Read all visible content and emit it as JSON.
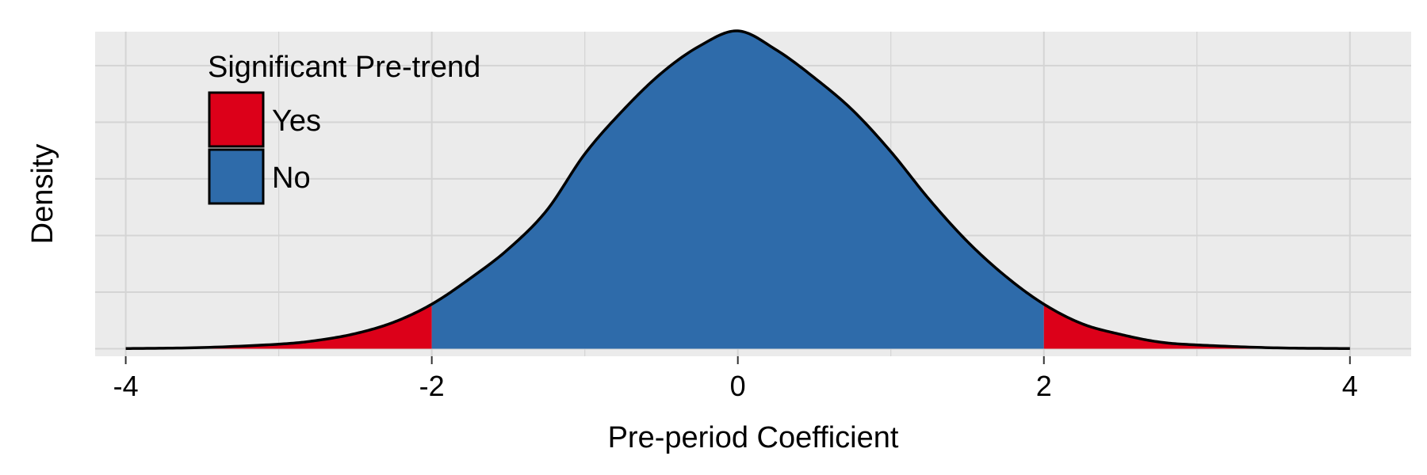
{
  "chart_data": {
    "type": "area",
    "xlabel": "Pre-period Coefficient",
    "ylabel": "Density",
    "xlim": [
      -4.2,
      4.4
    ],
    "ylim": [
      -0.01,
      0.42
    ],
    "x_ticks": [
      "-4",
      "-2",
      "0",
      "2",
      "4"
    ],
    "x_tick_values": [
      -4,
      -2,
      0,
      2,
      4
    ],
    "y_grid_values": [
      0,
      0.075,
      0.15,
      0.225,
      0.3,
      0.375
    ],
    "grid": true,
    "legend": {
      "title": "Significant Pre-trend",
      "placement": "top-left",
      "items": [
        {
          "label": "Yes",
          "color": "#DC0019"
        },
        {
          "label": "No",
          "color": "#2E6BAA"
        }
      ]
    },
    "threshold": 2,
    "density_x": [
      -4,
      -3.5,
      -3,
      -2.75,
      -2.5,
      -2.25,
      -2,
      -1.75,
      -1.5,
      -1.25,
      -1,
      -0.75,
      -0.5,
      -0.25,
      0,
      0.25,
      0.5,
      0.75,
      1,
      1.25,
      1.5,
      1.75,
      2,
      2.25,
      2.5,
      2.75,
      3,
      3.5,
      4
    ],
    "density_y": [
      0.0002,
      0.0015,
      0.006,
      0.011,
      0.02,
      0.035,
      0.059,
      0.093,
      0.132,
      0.183,
      0.258,
      0.316,
      0.365,
      0.401,
      0.421,
      0.396,
      0.359,
      0.316,
      0.261,
      0.198,
      0.142,
      0.096,
      0.059,
      0.033,
      0.019,
      0.009,
      0.005,
      0.0012,
      0.0002
    ]
  },
  "colors": {
    "panel_bg": "#EBEBEB",
    "grid": "#D4D4D4",
    "significant": "#DC0019",
    "not_significant": "#2E6BAA",
    "outline": "#000000"
  }
}
